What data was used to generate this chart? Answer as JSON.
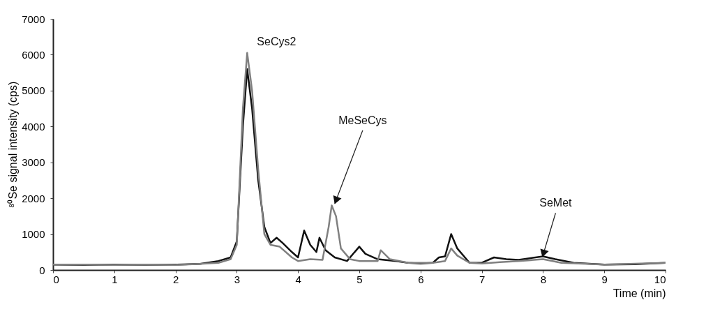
{
  "chart_data": {
    "type": "line",
    "xlabel": "Time (min)",
    "ylabel": "⁸⁰Se signal intensity (cps)",
    "xlim": [
      0,
      10
    ],
    "xticks": [
      0,
      1,
      2,
      3,
      4,
      5,
      6,
      7,
      8,
      9,
      10
    ],
    "ylim": [
      0,
      7000
    ],
    "yticks": [
      0,
      1000,
      2000,
      3000,
      4000,
      5000,
      6000,
      7000
    ],
    "grid": false,
    "marker": "none",
    "line_style": "solid",
    "series": [
      {
        "color": "#111111",
        "x": [
          0,
          0.5,
          1,
          1.5,
          2,
          2.4,
          2.7,
          2.9,
          3.0,
          3.1,
          3.17,
          3.25,
          3.35,
          3.45,
          3.55,
          3.65,
          3.75,
          3.9,
          4.0,
          4.1,
          4.2,
          4.3,
          4.35,
          4.45,
          4.6,
          4.8,
          5.0,
          5.1,
          5.3,
          5.6,
          5.8,
          6.0,
          6.2,
          6.3,
          6.4,
          6.5,
          6.6,
          6.8,
          7.0,
          7.2,
          7.4,
          7.6,
          7.8,
          8.0,
          8.2,
          8.5,
          9.0,
          9.5,
          10
        ],
        "values": [
          150,
          140,
          150,
          140,
          150,
          170,
          250,
          350,
          800,
          4000,
          5600,
          4500,
          2500,
          1200,
          750,
          900,
          750,
          500,
          350,
          1100,
          700,
          500,
          900,
          550,
          350,
          250,
          650,
          450,
          300,
          250,
          200,
          180,
          200,
          350,
          380,
          1000,
          600,
          200,
          200,
          350,
          300,
          280,
          330,
          380,
          300,
          200,
          150,
          160,
          200
        ]
      },
      {
        "color": "#808080",
        "x": [
          0,
          0.5,
          1,
          1.5,
          2,
          2.4,
          2.7,
          2.9,
          3.0,
          3.1,
          3.17,
          3.25,
          3.35,
          3.45,
          3.55,
          3.7,
          3.9,
          4.0,
          4.2,
          4.4,
          4.5,
          4.55,
          4.62,
          4.7,
          4.85,
          5.0,
          5.3,
          5.35,
          5.5,
          5.8,
          6.2,
          6.4,
          6.5,
          6.6,
          6.8,
          7.0,
          7.3,
          7.6,
          8.0,
          8.3,
          9.0,
          10
        ],
        "values": [
          150,
          150,
          140,
          150,
          140,
          170,
          200,
          300,
          700,
          4500,
          6050,
          5000,
          2800,
          1000,
          700,
          650,
          350,
          250,
          300,
          280,
          1200,
          1800,
          1500,
          600,
          300,
          250,
          250,
          550,
          300,
          200,
          200,
          250,
          600,
          400,
          200,
          180,
          220,
          250,
          300,
          200,
          150,
          200
        ]
      }
    ],
    "annotations": [
      {
        "text": "SeCys2",
        "x": 3.17,
        "y": 6050
      },
      {
        "text": "MeSeCys",
        "x": 4.6,
        "y": 1850
      },
      {
        "text": "SeMet",
        "x": 8.0,
        "y": 420
      }
    ]
  }
}
